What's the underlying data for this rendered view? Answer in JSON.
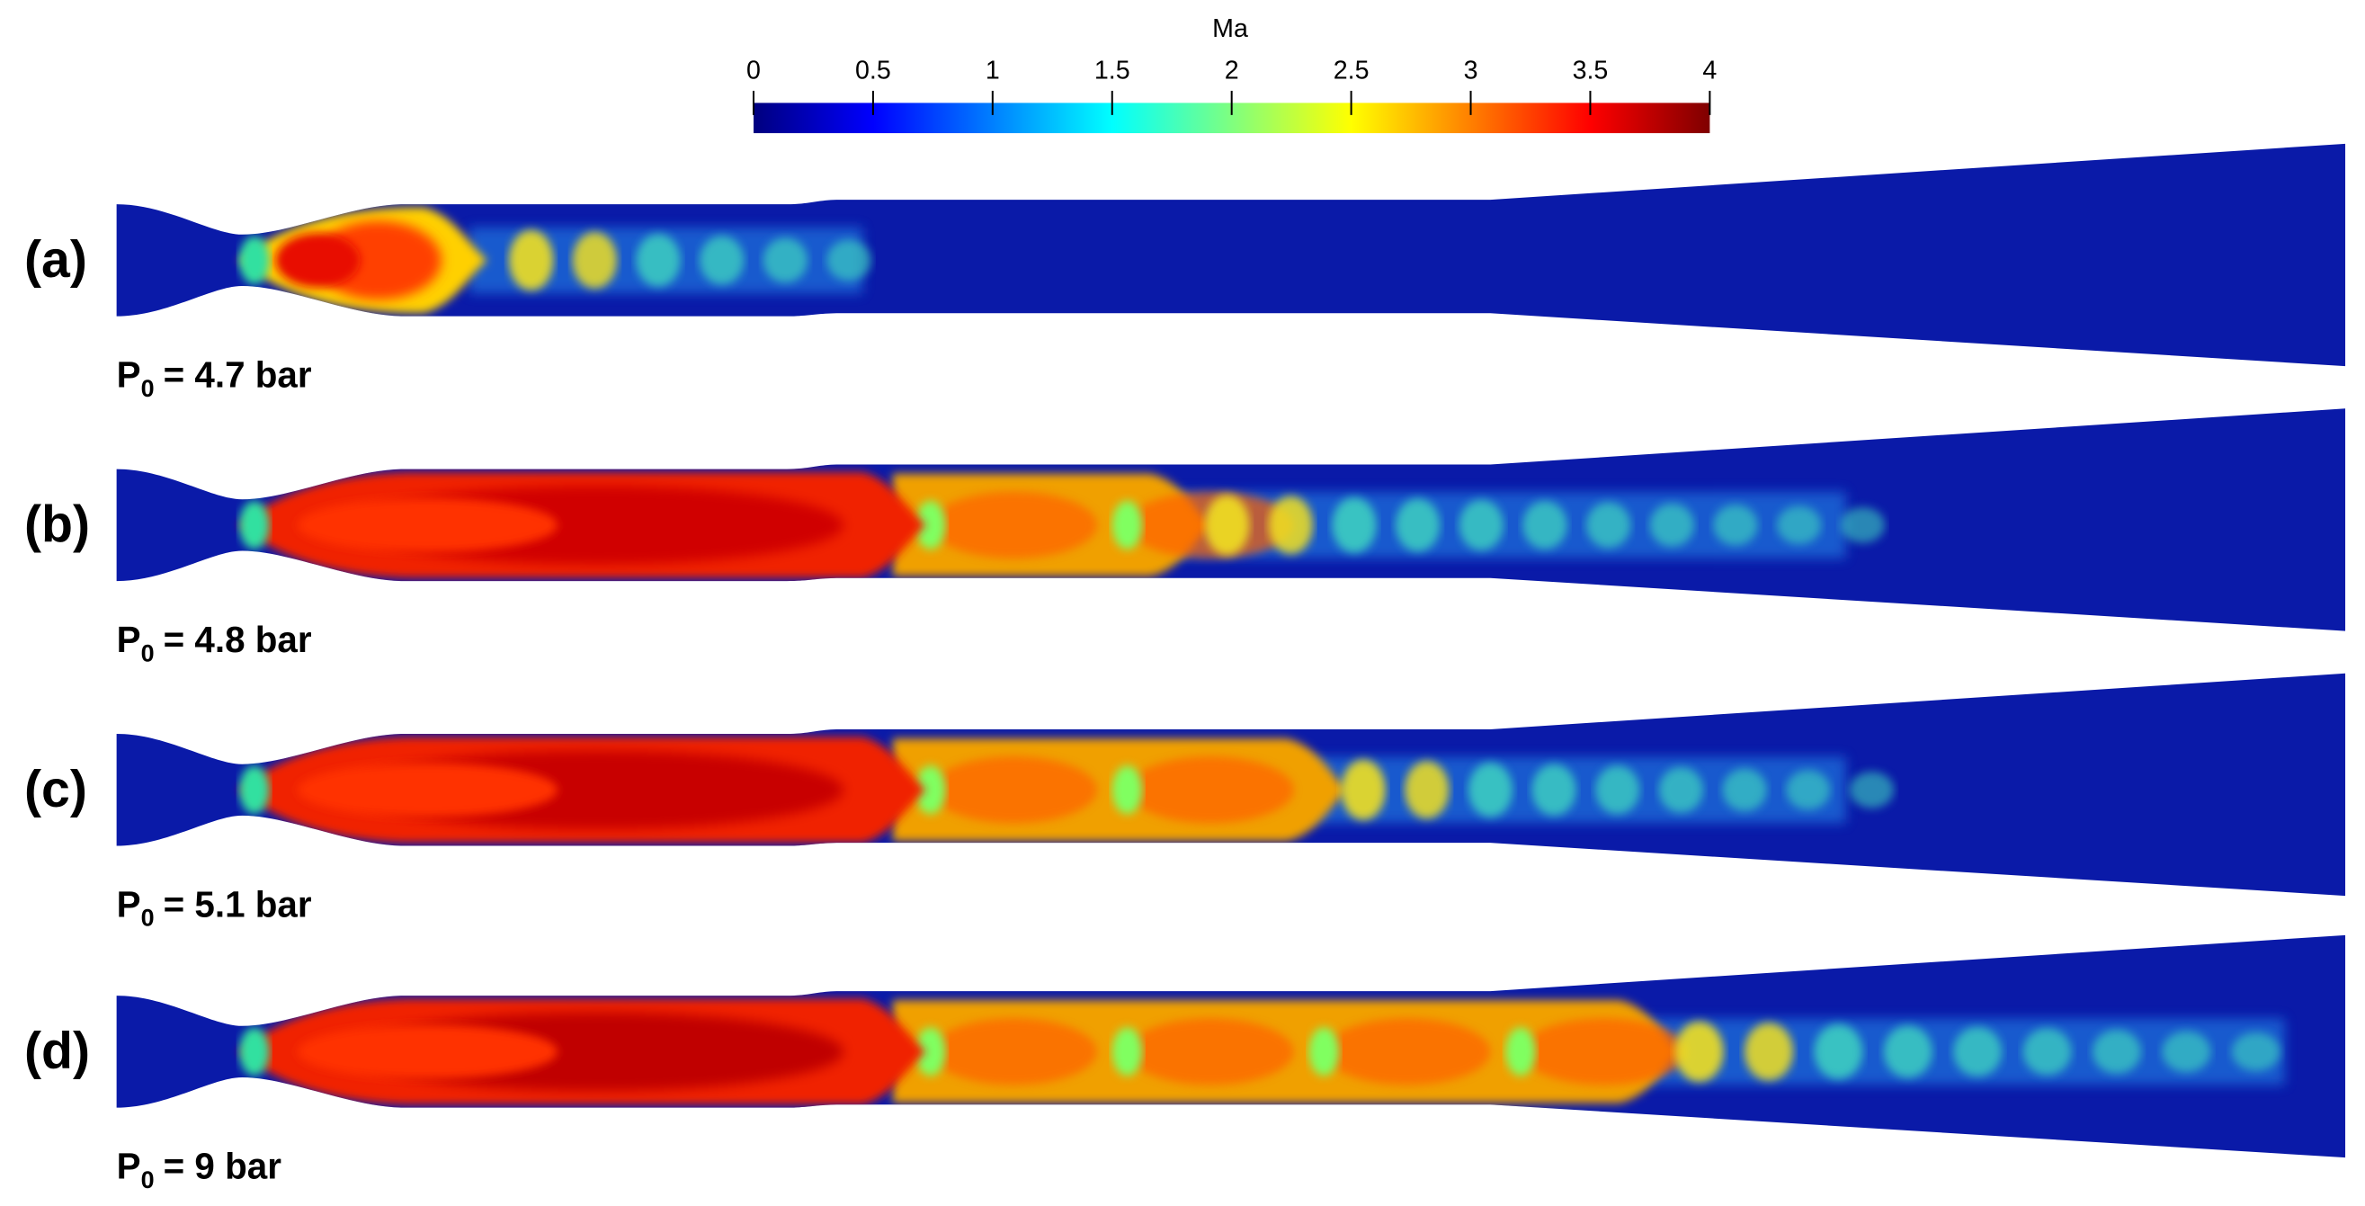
{
  "colorbar": {
    "title": "Ma",
    "lim": [
      0,
      4
    ],
    "ticks": [
      0,
      0.5,
      1,
      1.5,
      2,
      2.5,
      3,
      3.5,
      4
    ]
  },
  "panels": [
    {
      "label": "(a)",
      "symbol": "P",
      "subscript": "0",
      "value_text": "= 4.7 bar"
    },
    {
      "label": "(b)",
      "symbol": "P",
      "subscript": "0",
      "value_text": "= 4.8 bar"
    },
    {
      "label": "(c)",
      "symbol": "P",
      "subscript": "0",
      "value_text": "= 5.1 bar"
    },
    {
      "label": "(d)",
      "symbol": "P",
      "subscript": "0",
      "value_text": "= 9 bar"
    }
  ]
}
